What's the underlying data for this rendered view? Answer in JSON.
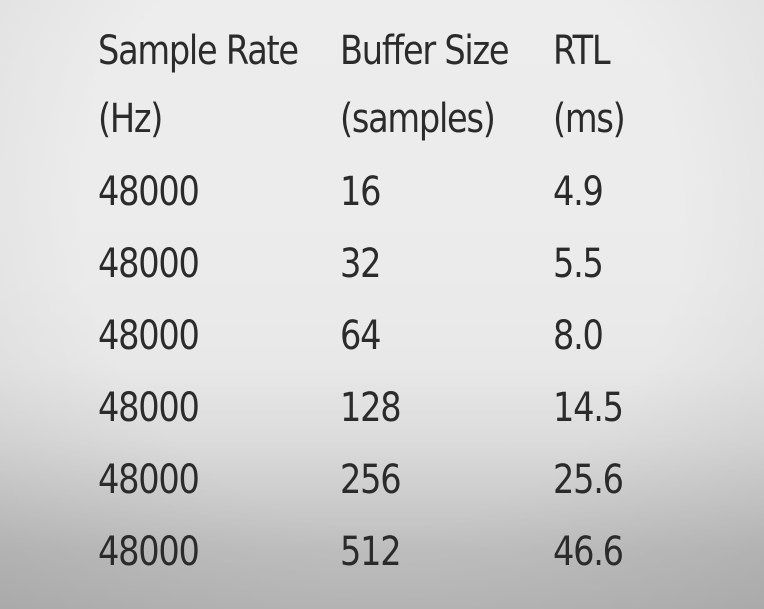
{
  "table": {
    "headers": [
      {
        "line1": "Sample Rate",
        "line2": "(Hz)"
      },
      {
        "line1": "Buffer Size",
        "line2": "(samples)"
      },
      {
        "line1": "RTL",
        "line2": "(ms)"
      }
    ],
    "rows": [
      {
        "sample_rate": "48000",
        "buffer_size": "16",
        "rtl": "4.9"
      },
      {
        "sample_rate": "48000",
        "buffer_size": "32",
        "rtl": "5.5"
      },
      {
        "sample_rate": "48000",
        "buffer_size": "64",
        "rtl": "8.0"
      },
      {
        "sample_rate": "48000",
        "buffer_size": "128",
        "rtl": "14.5"
      },
      {
        "sample_rate": "48000",
        "buffer_size": "256",
        "rtl": "25.6"
      },
      {
        "sample_rate": "48000",
        "buffer_size": "512",
        "rtl": "46.6"
      }
    ]
  }
}
